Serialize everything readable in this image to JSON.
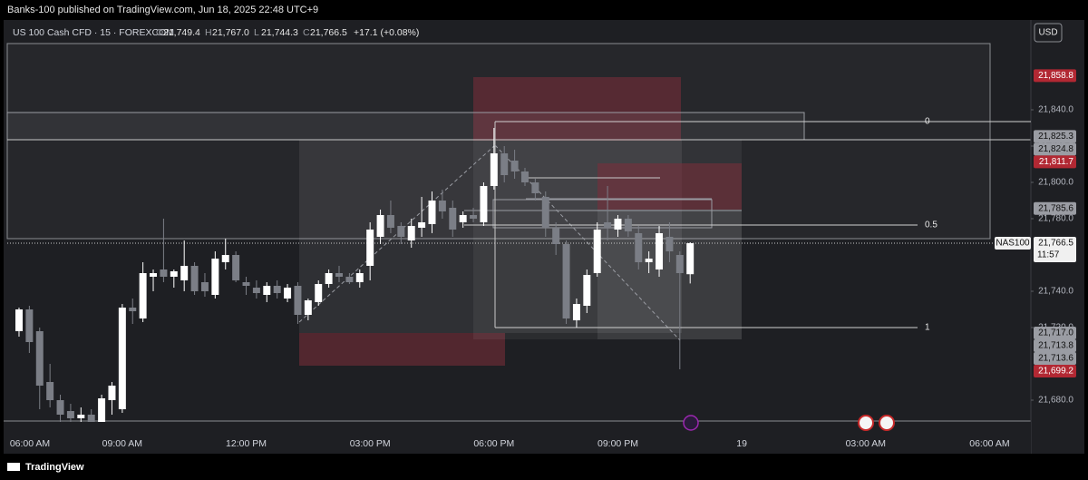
{
  "header": {
    "title": "Banks-100 published on TradingView.com, Jun 18, 2025 22:48 UTC+9"
  },
  "footer": {
    "brand": "TradingView"
  },
  "chart_data": {
    "type": "candlestick",
    "legend": {
      "symbol": "US 100 Cash CFD · 15 · FOREXCOM",
      "ohlc": [
        {
          "letter": "O",
          "value": "21,749.4"
        },
        {
          "letter": "H",
          "value": "21,767.0"
        },
        {
          "letter": "L",
          "value": "21,744.3"
        },
        {
          "letter": "C",
          "value": "21,766.5"
        }
      ],
      "change": "+17.1 (+0.08%)"
    },
    "currency": "USD",
    "up_color": "#ffffff",
    "down_color": "#7b7e86",
    "open": [
      21718,
      21730,
      21718,
      21690,
      21680,
      21674,
      21670,
      21672,
      21668,
      21680,
      21675,
      21731,
      21725,
      21748,
      21752,
      21748,
      21746,
      21754,
      21745,
      21738,
      21756,
      21760,
      21745,
      21742,
      21738,
      21743,
      21736,
      21743,
      21727,
      21734,
      21744,
      21750,
      21748,
      21745,
      21754,
      21770,
      21782,
      21776,
      21768,
      21775,
      21777,
      21790,
      21786,
      21778,
      21782,
      21778,
      21798,
      21816,
      21812,
      21806,
      21800,
      21792,
      21775,
      21766,
      21724,
      21732,
      21750,
      21778,
      21774,
      21780,
      21772,
      21756,
      21752,
      21770,
      21760,
      21749.4
    ],
    "high": [
      21731,
      21732,
      21720,
      21700,
      21683,
      21678,
      21676,
      21675,
      21683,
      21690,
      21733,
      21736,
      21756,
      21752,
      21780,
      21752,
      21768,
      21756,
      21750,
      21762,
      21769,
      21762,
      21748,
      21746,
      21745,
      21746,
      21744,
      21745,
      21736,
      21746,
      21752,
      21754,
      21750,
      21752,
      21778,
      21785,
      21790,
      21778,
      21780,
      21792,
      21795,
      21796,
      21790,
      21784,
      21786,
      21800,
      21830,
      21820,
      21818,
      21808,
      21802,
      21795,
      21778,
      21768,
      21736,
      21752,
      21778,
      21798,
      21782,
      21782,
      21776,
      21762,
      21776,
      21778,
      21762,
      21767.0
    ],
    "low": [
      21715,
      21706,
      21675,
      21676,
      21668,
      21668,
      21666,
      21664,
      21667,
      21672,
      21673,
      21722,
      21723,
      21740,
      21745,
      21742,
      21740,
      21738,
      21737,
      21736,
      21752,
      21745,
      21738,
      21736,
      21734,
      21736,
      21734,
      21722,
      21724,
      21732,
      21742,
      21745,
      21744,
      21742,
      21746,
      21766,
      21772,
      21766,
      21764,
      21770,
      21772,
      21780,
      21770,
      21775,
      21778,
      21776,
      21796,
      21800,
      21802,
      21798,
      21790,
      21770,
      21760,
      21722,
      21720,
      21728,
      21748,
      21768,
      21770,
      21770,
      21752,
      21750,
      21748,
      21756,
      21697,
      21744.3
    ],
    "close": [
      21730,
      21712,
      21688,
      21680,
      21672,
      21670,
      21672,
      21668,
      21681,
      21688,
      21731,
      21729,
      21750,
      21750,
      21748,
      21751,
      21754,
      21740,
      21740,
      21758,
      21760,
      21746,
      21743,
      21739,
      21743,
      21739,
      21742,
      21727,
      21735,
      21744,
      21750,
      21748,
      21745,
      21750,
      21774,
      21782,
      21775,
      21770,
      21776,
      21778,
      21790,
      21784,
      21774,
      21782,
      21780,
      21798,
      21816,
      21804,
      21806,
      21800,
      21794,
      21775,
      21766,
      21725,
      21733,
      21749,
      21774,
      21775,
      21780,
      21773,
      21756,
      21758,
      21772,
      21762,
      21750,
      21766.5
    ],
    "xlim": [
      -1.14,
      98
    ],
    "xticks": [
      {
        "value": -2,
        "label": "06:00 AM"
      },
      {
        "value": 10,
        "label": "09:00 AM"
      },
      {
        "value": 22,
        "label": "12:00 PM"
      },
      {
        "value": 34,
        "label": "03:00 PM"
      },
      {
        "value": 46,
        "label": "06:00 PM"
      },
      {
        "value": 58,
        "label": "09:00 PM"
      },
      {
        "value": 70,
        "label": "19"
      },
      {
        "value": 82,
        "label": "03:00 AM"
      },
      {
        "value": 94,
        "label": "06:00 AM"
      }
    ],
    "ylim": [
      21668.5,
      21890.5
    ],
    "yticks": [
      {
        "value": 21840,
        "label": "21,840.0"
      },
      {
        "value": 21820,
        "label": "21,820.0"
      },
      {
        "value": 21800,
        "label": "21,800.0"
      },
      {
        "value": 21780,
        "label": "21,780.0"
      },
      {
        "value": 21740,
        "label": "21,740.0"
      },
      {
        "value": 21720,
        "label": "21,720.0"
      },
      {
        "value": 21680,
        "label": "21,680.0"
      }
    ],
    "grid": false,
    "price_labels": [
      {
        "value": 21858.8,
        "label": "21,858.8",
        "color": "#b22833"
      },
      {
        "value": 21825.3,
        "label": "21,825.3",
        "color": "#9a9ca3"
      },
      {
        "value": 21824.8,
        "label": "21,824.8",
        "color": "#9a9ca3"
      },
      {
        "value": 21811.7,
        "label": "21,811.7",
        "color": "#b22833"
      },
      {
        "value": 21785.6,
        "label": "21,785.6",
        "color": "#9a9ca3"
      },
      {
        "value": 21717.0,
        "label": "21,717.0",
        "color": "#9a9ca3"
      },
      {
        "value": 21713.8,
        "label": "21,713.8",
        "color": "#9a9ca3"
      },
      {
        "value": 21713.6,
        "label": "21,713.6",
        "color": "#9a9ca3"
      },
      {
        "value": 21699.2,
        "label": "21,699.2",
        "color": "#b22833"
      }
    ],
    "last_price": {
      "value": 21766.5,
      "label": "21,766.5",
      "countdown": "11:57",
      "symbol_tag": "NAS100"
    },
    "fib_levels": [
      {
        "value": 21833.5,
        "label": "0"
      },
      {
        "value": 21776.5,
        "label": "0.5"
      },
      {
        "value": 21720,
        "label": "1"
      }
    ]
  }
}
